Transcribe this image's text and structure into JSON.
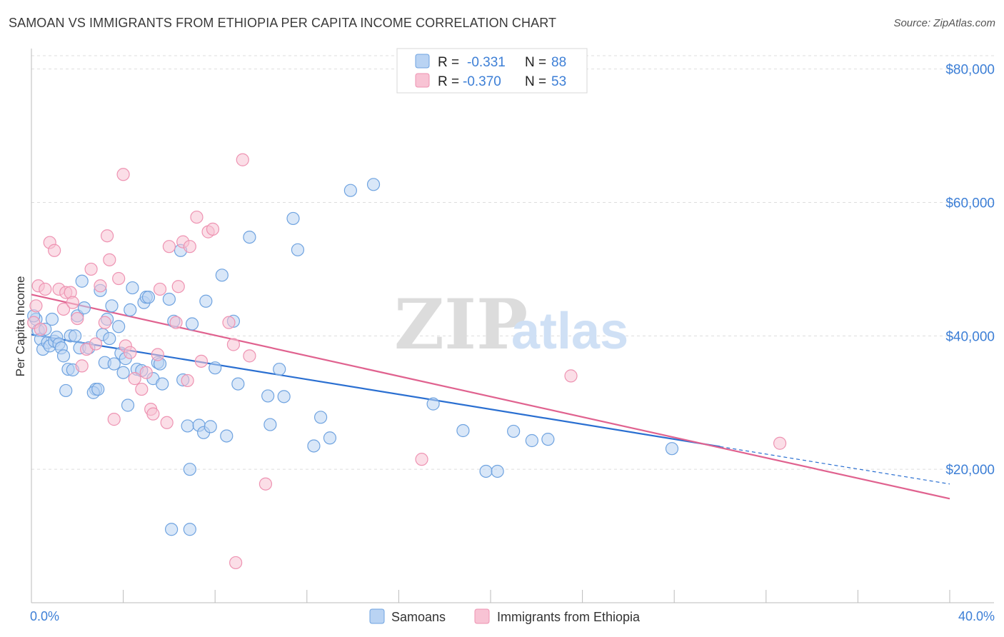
{
  "title": "SAMOAN VS IMMIGRANTS FROM ETHIOPIA PER CAPITA INCOME CORRELATION CHART",
  "source": "Source: ZipAtlas.com",
  "watermark": {
    "zip": "ZIP",
    "atlas": "atlas"
  },
  "chart_data": {
    "type": "scatter",
    "title": "SAMOAN VS IMMIGRANTS FROM ETHIOPIA PER CAPITA INCOME CORRELATION CHART",
    "xlabel": "",
    "ylabel": "Per Capita Income",
    "xlim": [
      0,
      40
    ],
    "ylim": [
      0,
      82000
    ],
    "x_tick_labels": [
      "0.0%",
      "40.0%"
    ],
    "y_ticks": [
      20000,
      40000,
      60000,
      80000
    ],
    "y_tick_labels": [
      "$20,000",
      "$40,000",
      "$60,000",
      "$80,000"
    ],
    "grid": true,
    "legend": {
      "entries": [
        {
          "r_label": "R =",
          "r_value": "-0.331",
          "n_label": "N =",
          "n_value": "88"
        },
        {
          "r_label": "R =",
          "r_value": "-0.370",
          "n_label": "N =",
          "n_value": "53"
        }
      ]
    },
    "series": [
      {
        "name": "Samoans",
        "color": "#6fa3e0",
        "fill": "#b9d3f3",
        "trend_color": "#2a6fd1",
        "trend": {
          "x0": 0,
          "y0": 40200,
          "x1": 30,
          "y1": 23400,
          "x_dash_end": 40,
          "y_dash_end": 17800
        },
        "points": [
          [
            0.2,
            42500
          ],
          [
            0.3,
            40800
          ],
          [
            0.4,
            39500
          ],
          [
            0.5,
            38000
          ],
          [
            0.6,
            41000
          ],
          [
            0.7,
            39000
          ],
          [
            0.8,
            38500
          ],
          [
            0.9,
            42500
          ],
          [
            1.0,
            39200
          ],
          [
            1.1,
            39800
          ],
          [
            1.2,
            38800
          ],
          [
            1.3,
            38200
          ],
          [
            1.4,
            37000
          ],
          [
            1.5,
            31800
          ],
          [
            1.6,
            35000
          ],
          [
            1.7,
            40000
          ],
          [
            1.8,
            34900
          ],
          [
            2.0,
            43000
          ],
          [
            2.1,
            38200
          ],
          [
            2.2,
            48200
          ],
          [
            2.3,
            44200
          ],
          [
            2.8,
            32000
          ],
          [
            2.7,
            31500
          ],
          [
            2.9,
            32000
          ],
          [
            3.0,
            46800
          ],
          [
            3.1,
            40200
          ],
          [
            3.2,
            36000
          ],
          [
            3.3,
            42500
          ],
          [
            3.4,
            39600
          ],
          [
            3.5,
            44500
          ],
          [
            3.6,
            35800
          ],
          [
            3.8,
            41400
          ],
          [
            3.9,
            37400
          ],
          [
            4.0,
            34500
          ],
          [
            4.1,
            36600
          ],
          [
            4.2,
            29600
          ],
          [
            4.3,
            43900
          ],
          [
            4.4,
            47200
          ],
          [
            4.6,
            35000
          ],
          [
            4.8,
            34800
          ],
          [
            4.9,
            45000
          ],
          [
            5.0,
            45800
          ],
          [
            5.1,
            45800
          ],
          [
            5.3,
            33600
          ],
          [
            5.5,
            36000
          ],
          [
            5.7,
            32800
          ],
          [
            6.0,
            45500
          ],
          [
            6.2,
            42200
          ],
          [
            6.5,
            52800
          ],
          [
            6.6,
            33400
          ],
          [
            6.8,
            26500
          ],
          [
            6.9,
            20000
          ],
          [
            7.0,
            41800
          ],
          [
            7.3,
            26600
          ],
          [
            7.5,
            25500
          ],
          [
            7.6,
            45200
          ],
          [
            7.8,
            26400
          ],
          [
            8.0,
            35200
          ],
          [
            8.3,
            49100
          ],
          [
            8.5,
            25000
          ],
          [
            8.8,
            42200
          ],
          [
            9.0,
            32800
          ],
          [
            9.5,
            54800
          ],
          [
            10.3,
            31000
          ],
          [
            10.4,
            26700
          ],
          [
            10.8,
            35000
          ],
          [
            11.0,
            30900
          ],
          [
            11.4,
            57600
          ],
          [
            11.6,
            52900
          ],
          [
            12.3,
            23500
          ],
          [
            12.6,
            27800
          ],
          [
            13.0,
            24700
          ],
          [
            13.9,
            61800
          ],
          [
            14.9,
            62700
          ],
          [
            17.5,
            29800
          ],
          [
            18.8,
            25800
          ],
          [
            19.8,
            19700
          ],
          [
            20.3,
            19700
          ],
          [
            21.0,
            25700
          ],
          [
            21.8,
            24300
          ],
          [
            22.5,
            24500
          ],
          [
            27.9,
            23100
          ],
          [
            6.1,
            11000
          ],
          [
            6.9,
            11000
          ],
          [
            0.1,
            43000
          ],
          [
            2.5,
            38200
          ],
          [
            1.9,
            40000
          ],
          [
            5.6,
            35800
          ]
        ]
      },
      {
        "name": "Immigrants from Ethiopia",
        "color": "#ee93b2",
        "fill": "#f8c3d4",
        "trend_color": "#e0628f",
        "trend": {
          "x0": 0,
          "y0": 46200,
          "x1": 40,
          "y1": 15600
        },
        "points": [
          [
            0.1,
            42000
          ],
          [
            0.2,
            44500
          ],
          [
            0.3,
            47500
          ],
          [
            0.4,
            41000
          ],
          [
            0.6,
            47000
          ],
          [
            0.8,
            54000
          ],
          [
            1.0,
            52800
          ],
          [
            1.2,
            47000
          ],
          [
            1.4,
            44000
          ],
          [
            1.5,
            46500
          ],
          [
            1.7,
            46500
          ],
          [
            1.8,
            45000
          ],
          [
            2.0,
            42600
          ],
          [
            2.2,
            35500
          ],
          [
            2.4,
            38000
          ],
          [
            2.6,
            50000
          ],
          [
            2.8,
            38800
          ],
          [
            3.0,
            47500
          ],
          [
            3.2,
            42000
          ],
          [
            3.3,
            55000
          ],
          [
            3.4,
            51400
          ],
          [
            3.6,
            27500
          ],
          [
            3.8,
            48600
          ],
          [
            4.0,
            64200
          ],
          [
            4.1,
            38500
          ],
          [
            4.3,
            37500
          ],
          [
            4.5,
            33600
          ],
          [
            4.8,
            32000
          ],
          [
            5.0,
            34500
          ],
          [
            5.2,
            29000
          ],
          [
            5.3,
            28300
          ],
          [
            5.5,
            37200
          ],
          [
            5.6,
            47000
          ],
          [
            5.9,
            27000
          ],
          [
            6.0,
            53400
          ],
          [
            6.3,
            42000
          ],
          [
            6.4,
            47400
          ],
          [
            6.6,
            54100
          ],
          [
            6.8,
            33300
          ],
          [
            6.9,
            53400
          ],
          [
            7.2,
            57800
          ],
          [
            7.4,
            36200
          ],
          [
            7.7,
            55600
          ],
          [
            7.9,
            56000
          ],
          [
            8.6,
            42000
          ],
          [
            8.8,
            38700
          ],
          [
            9.2,
            66400
          ],
          [
            9.5,
            37000
          ],
          [
            10.2,
            17800
          ],
          [
            17.0,
            21500
          ],
          [
            23.5,
            34000
          ],
          [
            32.6,
            23900
          ],
          [
            8.9,
            6000
          ]
        ]
      }
    ]
  }
}
